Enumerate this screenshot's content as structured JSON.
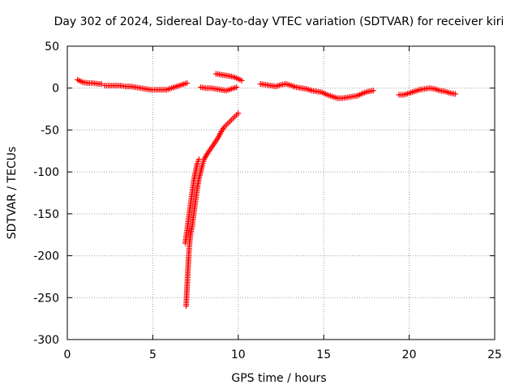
{
  "chart_data": {
    "type": "scatter",
    "title": "Day 302 of 2024, Sidereal Day-to-day VTEC variation (SDTVAR) for receiver kiri",
    "xlabel": "GPS time / hours",
    "ylabel": "SDTVAR / TECUs",
    "xlim": [
      0,
      25
    ],
    "ylim": [
      -300,
      50
    ],
    "xticks": [
      "0",
      "5",
      "10",
      "15",
      "20",
      "25"
    ],
    "yticks": [
      "50",
      "0",
      "-50",
      "-100",
      "-150",
      "-200",
      "-250",
      "-300"
    ],
    "grid": true,
    "marker": "+",
    "color": "#ff0000",
    "series": [
      {
        "x": [
          0.6,
          0.9,
          1.2,
          1.5,
          1.8,
          2.0
        ],
        "y": [
          10,
          7,
          6,
          6,
          5,
          5
        ]
      },
      {
        "x": [
          2.2,
          2.5,
          2.8,
          3.1,
          3.4,
          3.7,
          4.0,
          4.3,
          4.6,
          4.9,
          5.2,
          5.5,
          5.8,
          6.1,
          6.4,
          6.7,
          7.0
        ],
        "y": [
          3,
          3,
          3,
          3,
          2,
          2,
          1,
          0,
          -1,
          -2,
          -2,
          -2,
          -2,
          0,
          2,
          4,
          6
        ]
      },
      {
        "x": [
          7.8,
          8.1,
          8.4,
          8.7,
          9.0,
          9.3,
          9.6,
          9.9
        ],
        "y": [
          1,
          0,
          0,
          -1,
          -2,
          -3,
          -1,
          1
        ]
      },
      {
        "x": [
          8.7,
          9.0,
          9.3,
          9.6,
          9.9,
          10.2
        ],
        "y": [
          17,
          16,
          15,
          14,
          12,
          9
        ]
      },
      {
        "x": [
          11.3,
          11.6,
          11.9,
          12.2,
          12.5,
          12.8,
          13.1,
          13.4,
          13.7,
          14.0,
          14.3,
          14.6,
          14.9,
          15.2,
          15.5,
          15.8,
          16.1,
          16.4,
          16.7,
          17.0,
          17.3,
          17.6,
          17.9
        ],
        "y": [
          5,
          4,
          3,
          2,
          4,
          5,
          3,
          1,
          0,
          -1,
          -3,
          -4,
          -5,
          -8,
          -10,
          -12,
          -12,
          -11,
          -10,
          -9,
          -6,
          -4,
          -3
        ]
      },
      {
        "x": [
          19.4,
          19.7,
          20.0,
          20.3,
          20.6,
          20.9,
          21.2,
          21.5,
          21.8,
          22.1,
          22.4,
          22.7
        ],
        "y": [
          -8,
          -8,
          -6,
          -4,
          -2,
          -1,
          0,
          -1,
          -3,
          -4,
          -6,
          -7
        ]
      },
      {
        "x": [
          6.95,
          7.0,
          7.05,
          7.1,
          7.15,
          7.2,
          7.3,
          7.4,
          7.5,
          7.6,
          7.7,
          7.8,
          7.9,
          8.0,
          8.2,
          8.4,
          8.6,
          8.8,
          9.0,
          9.2,
          9.4,
          9.6,
          9.8,
          10.0
        ],
        "y": [
          -260,
          -240,
          -220,
          -200,
          -185,
          -175,
          -165,
          -150,
          -135,
          -120,
          -108,
          -100,
          -92,
          -85,
          -78,
          -72,
          -66,
          -60,
          -52,
          -46,
          -42,
          -38,
          -34,
          -30
        ]
      },
      {
        "x": [
          6.9,
          7.0,
          7.1,
          7.2,
          7.3,
          7.4,
          7.5,
          7.6,
          7.7
        ],
        "y": [
          -185,
          -170,
          -155,
          -140,
          -125,
          -110,
          -100,
          -90,
          -85
        ]
      }
    ]
  }
}
